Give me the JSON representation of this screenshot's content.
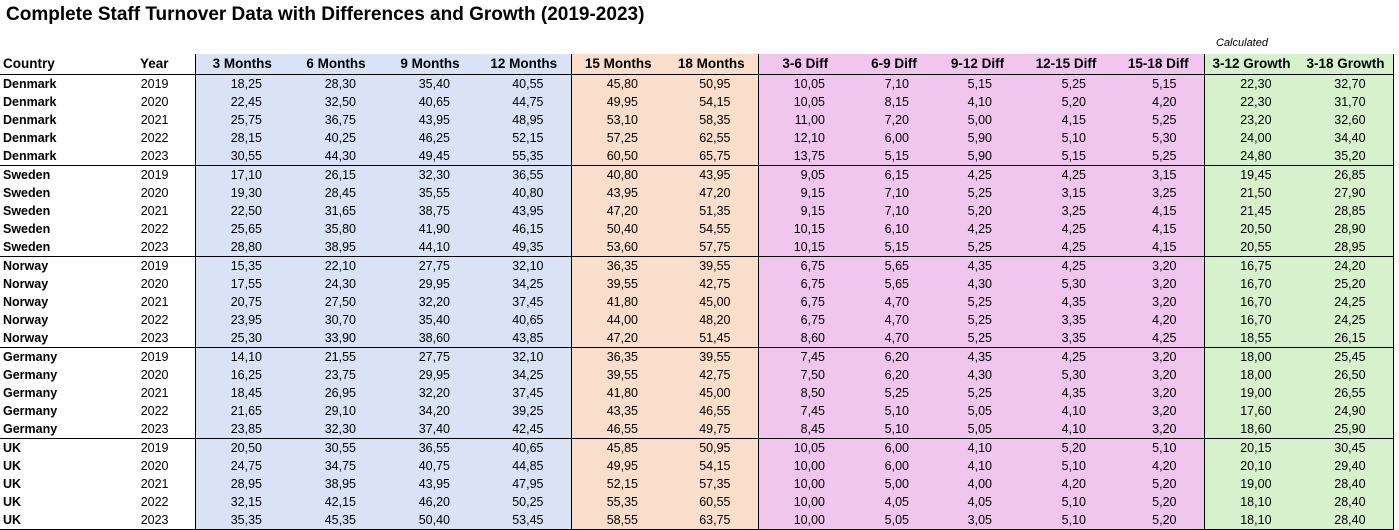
{
  "title": "Complete Staff Turnover Data with Differences and Growth (2019-2023)",
  "calculated_label": "Calculated",
  "headers": [
    "Country",
    "Year",
    "3 Months",
    "6 Months",
    "9 Months",
    "12 Months",
    "15 Months",
    "18 Months",
    "3-6 Diff",
    "6-9 Diff",
    "9-12 Diff",
    "12-15 Diff",
    "15-18 Diff",
    "3-12 Growth",
    "3-18 Growth"
  ],
  "colors": {
    "blue": "#dae3f6",
    "orange": "#f9dfcb",
    "pink": "#f0c6ef",
    "green": "#d7f1cc"
  },
  "rows": [
    [
      "Denmark",
      "2019",
      "18,25",
      "28,30",
      "35,40",
      "40,55",
      "45,80",
      "50,95",
      "10,05",
      "7,10",
      "5,15",
      "5,25",
      "5,15",
      "22,30",
      "32,70"
    ],
    [
      "Denmark",
      "2020",
      "22,45",
      "32,50",
      "40,65",
      "44,75",
      "49,95",
      "54,15",
      "10,05",
      "8,15",
      "4,10",
      "5,20",
      "4,20",
      "22,30",
      "31,70"
    ],
    [
      "Denmark",
      "2021",
      "25,75",
      "36,75",
      "43,95",
      "48,95",
      "53,10",
      "58,35",
      "11,00",
      "7,20",
      "5,00",
      "4,15",
      "5,25",
      "23,20",
      "32,60"
    ],
    [
      "Denmark",
      "2022",
      "28,15",
      "40,25",
      "46,25",
      "52,15",
      "57,25",
      "62,55",
      "12,10",
      "6,00",
      "5,90",
      "5,10",
      "5,30",
      "24,00",
      "34,40"
    ],
    [
      "Denmark",
      "2023",
      "30,55",
      "44,30",
      "49,45",
      "55,35",
      "60,50",
      "65,75",
      "13,75",
      "5,15",
      "5,90",
      "5,15",
      "5,25",
      "24,80",
      "35,20"
    ],
    [
      "Sweden",
      "2019",
      "17,10",
      "26,15",
      "32,30",
      "36,55",
      "40,80",
      "43,95",
      "9,05",
      "6,15",
      "4,25",
      "4,25",
      "3,15",
      "19,45",
      "26,85"
    ],
    [
      "Sweden",
      "2020",
      "19,30",
      "28,45",
      "35,55",
      "40,80",
      "43,95",
      "47,20",
      "9,15",
      "7,10",
      "5,25",
      "3,15",
      "3,25",
      "21,50",
      "27,90"
    ],
    [
      "Sweden",
      "2021",
      "22,50",
      "31,65",
      "38,75",
      "43,95",
      "47,20",
      "51,35",
      "9,15",
      "7,10",
      "5,20",
      "3,25",
      "4,15",
      "21,45",
      "28,85"
    ],
    [
      "Sweden",
      "2022",
      "25,65",
      "35,80",
      "41,90",
      "46,15",
      "50,40",
      "54,55",
      "10,15",
      "6,10",
      "4,25",
      "4,25",
      "4,15",
      "20,50",
      "28,90"
    ],
    [
      "Sweden",
      "2023",
      "28,80",
      "38,95",
      "44,10",
      "49,35",
      "53,60",
      "57,75",
      "10,15",
      "5,15",
      "5,25",
      "4,25",
      "4,15",
      "20,55",
      "28,95"
    ],
    [
      "Norway",
      "2019",
      "15,35",
      "22,10",
      "27,75",
      "32,10",
      "36,35",
      "39,55",
      "6,75",
      "5,65",
      "4,35",
      "4,25",
      "3,20",
      "16,75",
      "24,20"
    ],
    [
      "Norway",
      "2020",
      "17,55",
      "24,30",
      "29,95",
      "34,25",
      "39,55",
      "42,75",
      "6,75",
      "5,65",
      "4,30",
      "5,30",
      "3,20",
      "16,70",
      "25,20"
    ],
    [
      "Norway",
      "2021",
      "20,75",
      "27,50",
      "32,20",
      "37,45",
      "41,80",
      "45,00",
      "6,75",
      "4,70",
      "5,25",
      "4,35",
      "3,20",
      "16,70",
      "24,25"
    ],
    [
      "Norway",
      "2022",
      "23,95",
      "30,70",
      "35,40",
      "40,65",
      "44,00",
      "48,20",
      "6,75",
      "4,70",
      "5,25",
      "3,35",
      "4,20",
      "16,70",
      "24,25"
    ],
    [
      "Norway",
      "2023",
      "25,30",
      "33,90",
      "38,60",
      "43,85",
      "47,20",
      "51,45",
      "8,60",
      "4,70",
      "5,25",
      "3,35",
      "4,25",
      "18,55",
      "26,15"
    ],
    [
      "Germany",
      "2019",
      "14,10",
      "21,55",
      "27,75",
      "32,10",
      "36,35",
      "39,55",
      "7,45",
      "6,20",
      "4,35",
      "4,25",
      "3,20",
      "18,00",
      "25,45"
    ],
    [
      "Germany",
      "2020",
      "16,25",
      "23,75",
      "29,95",
      "34,25",
      "39,55",
      "42,75",
      "7,50",
      "6,20",
      "4,30",
      "5,30",
      "3,20",
      "18,00",
      "26,50"
    ],
    [
      "Germany",
      "2021",
      "18,45",
      "26,95",
      "32,20",
      "37,45",
      "41,80",
      "45,00",
      "8,50",
      "5,25",
      "5,25",
      "4,35",
      "3,20",
      "19,00",
      "26,55"
    ],
    [
      "Germany",
      "2022",
      "21,65",
      "29,10",
      "34,20",
      "39,25",
      "43,35",
      "46,55",
      "7,45",
      "5,10",
      "5,05",
      "4,10",
      "3,20",
      "17,60",
      "24,90"
    ],
    [
      "Germany",
      "2023",
      "23,85",
      "32,30",
      "37,40",
      "42,45",
      "46,55",
      "49,75",
      "8,45",
      "5,10",
      "5,05",
      "4,10",
      "3,20",
      "18,60",
      "25,90"
    ],
    [
      "UK",
      "2019",
      "20,50",
      "30,55",
      "36,55",
      "40,65",
      "45,85",
      "50,95",
      "10,05",
      "6,00",
      "4,10",
      "5,20",
      "5,10",
      "20,15",
      "30,45"
    ],
    [
      "UK",
      "2020",
      "24,75",
      "34,75",
      "40,75",
      "44,85",
      "49,95",
      "54,15",
      "10,00",
      "6,00",
      "4,10",
      "5,10",
      "4,20",
      "20,10",
      "29,40"
    ],
    [
      "UK",
      "2021",
      "28,95",
      "38,95",
      "43,95",
      "47,95",
      "52,15",
      "57,35",
      "10,00",
      "5,00",
      "4,00",
      "4,20",
      "5,20",
      "19,00",
      "28,40"
    ],
    [
      "UK",
      "2022",
      "32,15",
      "42,15",
      "46,20",
      "50,25",
      "55,35",
      "60,55",
      "10,00",
      "4,05",
      "4,05",
      "5,10",
      "5,20",
      "18,10",
      "28,40"
    ],
    [
      "UK",
      "2023",
      "35,35",
      "45,35",
      "50,40",
      "53,45",
      "58,55",
      "63,75",
      "10,00",
      "5,05",
      "3,05",
      "5,10",
      "5,20",
      "18,10",
      "28,40"
    ]
  ]
}
